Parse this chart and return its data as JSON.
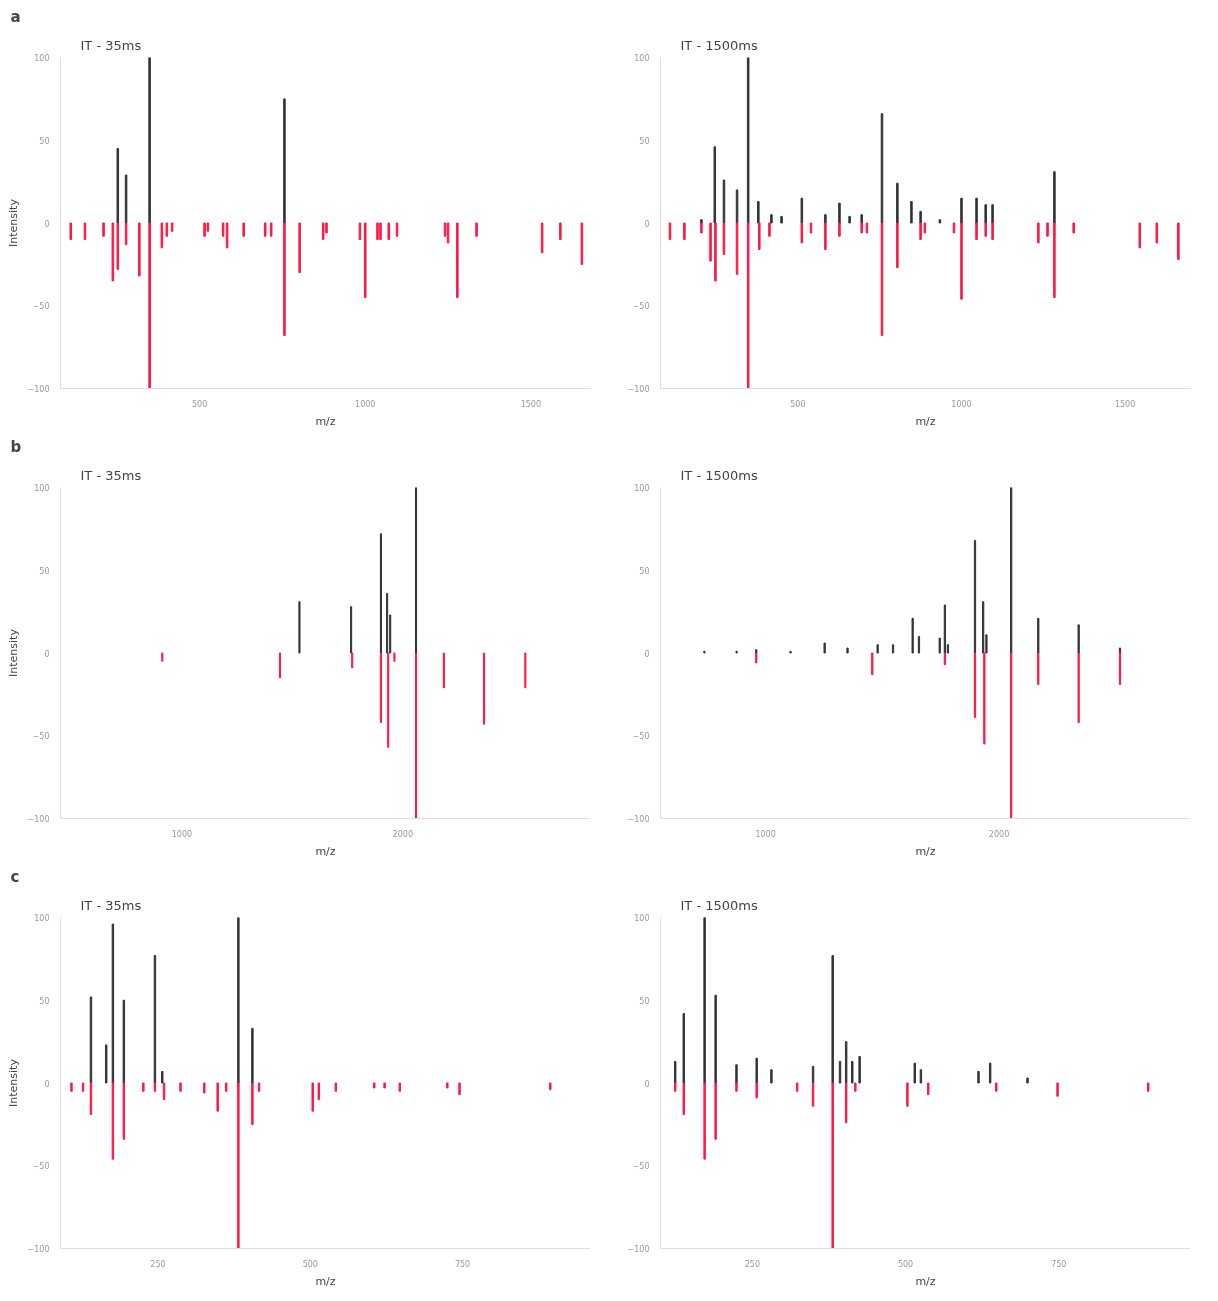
{
  "chart_data": [
    {
      "type": "bar",
      "annotations": [
        "a"
      ],
      "title": "IT - 35ms",
      "xlabel": "m/z",
      "ylabel": "Intensity",
      "xlim": [
        80,
        1680
      ],
      "xticks": [
        500,
        1000,
        1500
      ],
      "ylim": [
        -100,
        100
      ],
      "yticks": [
        -100,
        -50,
        0,
        50,
        100
      ],
      "grid": false,
      "series": [
        {
          "color": "#333333",
          "x": [
            253,
            278,
            349,
            756
          ],
          "values": [
            45,
            29,
            100,
            75
          ]
        },
        {
          "color": "#ff1744",
          "x": [
            111,
            154,
            210,
            238,
            253,
            278,
            318,
            349,
            386,
            401,
            417,
            515,
            525,
            571,
            583,
            633,
            698,
            716,
            756,
            802,
            873,
            883,
            984,
            1000,
            1037,
            1046,
            1071,
            1096,
            1241,
            1250,
            1278,
            1336,
            1534,
            1589,
            1654
          ],
          "values": [
            -10,
            -10,
            -8,
            -35,
            -28,
            -13,
            -32,
            -100,
            -15,
            -8,
            -5,
            -8,
            -5,
            -8,
            -15,
            -8,
            -8,
            -8,
            -68,
            -30,
            -10,
            -6,
            -10,
            -45,
            -10,
            -10,
            -10,
            -8,
            -8,
            -12,
            -45,
            -8,
            -18,
            -10,
            -25
          ]
        }
      ]
    },
    {
      "type": "bar",
      "title": "IT - 1500ms",
      "xlabel": "m/z",
      "xlim": [
        80,
        1700
      ],
      "xticks": [
        500,
        1000,
        1500
      ],
      "ylim": [
        -100,
        100
      ],
      "yticks": [
        -100,
        -50,
        0,
        50,
        100
      ],
      "grid": false,
      "series": [
        {
          "color": "#333333",
          "x": [
            205,
            246,
            274,
            314,
            348,
            379,
            419,
            450,
            512,
            584,
            627,
            658,
            695,
            757,
            804,
            847,
            875,
            934,
            1000,
            1046,
            1074,
            1095,
            1284
          ],
          "values": [
            2,
            46,
            26,
            20,
            100,
            13,
            5,
            4,
            15,
            5,
            12,
            4,
            5,
            66,
            24,
            13,
            7,
            2,
            15,
            15,
            11,
            11,
            31
          ]
        },
        {
          "color": "#ff1744",
          "x": [
            109,
            153,
            205,
            233,
            248,
            274,
            314,
            348,
            382,
            413,
            512,
            540,
            584,
            627,
            695,
            711,
            757,
            804,
            875,
            888,
            977,
            1000,
            1046,
            1074,
            1095,
            1235,
            1263,
            1284,
            1343,
            1545,
            1597,
            1663
          ],
          "values": [
            -10,
            -10,
            -6,
            -23,
            -35,
            -19,
            -31,
            -100,
            -16,
            -8,
            -12,
            -6,
            -16,
            -8,
            -6,
            -6,
            -68,
            -27,
            -10,
            -6,
            -6,
            -46,
            -10,
            -8,
            -10,
            -12,
            -8,
            -45,
            -6,
            -15,
            -12,
            -22
          ]
        }
      ]
    },
    {
      "type": "bar",
      "annotations": [
        "b"
      ],
      "title": "IT - 35ms",
      "xlabel": "m/z",
      "ylabel": "Intensity",
      "xlim": [
        450,
        2850
      ],
      "xticks": [
        1000,
        2000
      ],
      "ylim": [
        -100,
        100
      ],
      "yticks": [
        -100,
        -50,
        0,
        50,
        100
      ],
      "grid": false,
      "series": [
        {
          "color": "#333333",
          "x": [
            1532,
            1766,
            1901,
            1929,
            1943,
            2060
          ],
          "values": [
            31,
            28,
            72,
            36,
            23,
            100
          ]
        },
        {
          "color": "#ff1744",
          "x": [
            911,
            1444,
            1771,
            1901,
            1934,
            1962,
            2060,
            2186,
            2368,
            2555
          ],
          "values": [
            -5,
            -15,
            -9,
            -42,
            -57,
            -5,
            -100,
            -21,
            -43,
            -21
          ]
        }
      ]
    },
    {
      "type": "bar",
      "title": "IT - 1500ms",
      "xlabel": "m/z",
      "xlim": [
        550,
        2820
      ],
      "xticks": [
        1000,
        2000
      ],
      "ylim": [
        -100,
        100
      ],
      "yticks": [
        -100,
        -50,
        0,
        50,
        100
      ],
      "grid": false,
      "series": [
        {
          "color": "#333333",
          "x": [
            738,
            876,
            960,
            1107,
            1253,
            1351,
            1480,
            1546,
            1630,
            1657,
            1746,
            1768,
            1781,
            1897,
            1932,
            1946,
            2052,
            2168,
            2341,
            2518
          ],
          "values": [
            1,
            1,
            2,
            1,
            6,
            3,
            5,
            5,
            21,
            10,
            9,
            29,
            5,
            68,
            31,
            11,
            100,
            21,
            17,
            3
          ]
        },
        {
          "color": "#ff1744",
          "x": [
            960,
            1457,
            1768,
            1897,
            1937,
            2052,
            2168,
            2341,
            2518
          ],
          "values": [
            -6,
            -13,
            -7,
            -39,
            -55,
            -100,
            -19,
            -42,
            -19
          ]
        }
      ]
    },
    {
      "type": "bar",
      "annotations": [
        "c"
      ],
      "title": "IT - 35ms",
      "xlabel": "m/z",
      "ylabel": "Intensity",
      "xlim": [
        90,
        960
      ],
      "xticks": [
        250,
        500,
        750
      ],
      "ylim": [
        -100,
        100
      ],
      "yticks": [
        -100,
        -50,
        0,
        50,
        100
      ],
      "grid": false,
      "series": [
        {
          "color": "#333333",
          "x": [
            140,
            165,
            176,
            194,
            245,
            257,
            382,
            405
          ],
          "values": [
            52,
            23,
            96,
            50,
            77,
            7,
            100,
            33
          ]
        },
        {
          "color": "#ff1744",
          "x": [
            108,
            127,
            140,
            176,
            194,
            226,
            245,
            260,
            287,
            326,
            348,
            362,
            382,
            405,
            416,
            504,
            514,
            542,
            605,
            622,
            647,
            725,
            745,
            894
          ],
          "values": [
            -5,
            -5,
            -19,
            -46,
            -34,
            -5,
            -5,
            -10,
            -5,
            -6,
            -17,
            -5,
            -100,
            -25,
            -5,
            -17,
            -10,
            -5,
            -3,
            -3,
            -5,
            -3,
            -7,
            -4
          ]
        }
      ]
    },
    {
      "type": "bar",
      "title": "IT - 1500ms",
      "xlabel": "m/z",
      "xlim": [
        100,
        965
      ],
      "xticks": [
        250,
        500,
        750
      ],
      "ylim": [
        -100,
        100
      ],
      "yticks": [
        -100,
        -50,
        0,
        50,
        100
      ],
      "grid": false,
      "series": [
        {
          "color": "#333333",
          "x": [
            124,
            138,
            172,
            190,
            224,
            257,
            281,
            349,
            381,
            393,
            403,
            413,
            425,
            515,
            525,
            619,
            638,
            699
          ],
          "values": [
            13,
            42,
            100,
            53,
            11,
            15,
            8,
            10,
            77,
            13,
            25,
            13,
            16,
            12,
            8,
            7,
            12,
            3
          ]
        },
        {
          "color": "#ff1744",
          "x": [
            124,
            138,
            172,
            190,
            224,
            257,
            323,
            349,
            381,
            403,
            418,
            503,
            537,
            648,
            748,
            896
          ],
          "values": [
            -5,
            -19,
            -46,
            -34,
            -5,
            -9,
            -5,
            -14,
            -100,
            -24,
            -5,
            -14,
            -7,
            -5,
            -8,
            -5
          ]
        }
      ]
    }
  ]
}
